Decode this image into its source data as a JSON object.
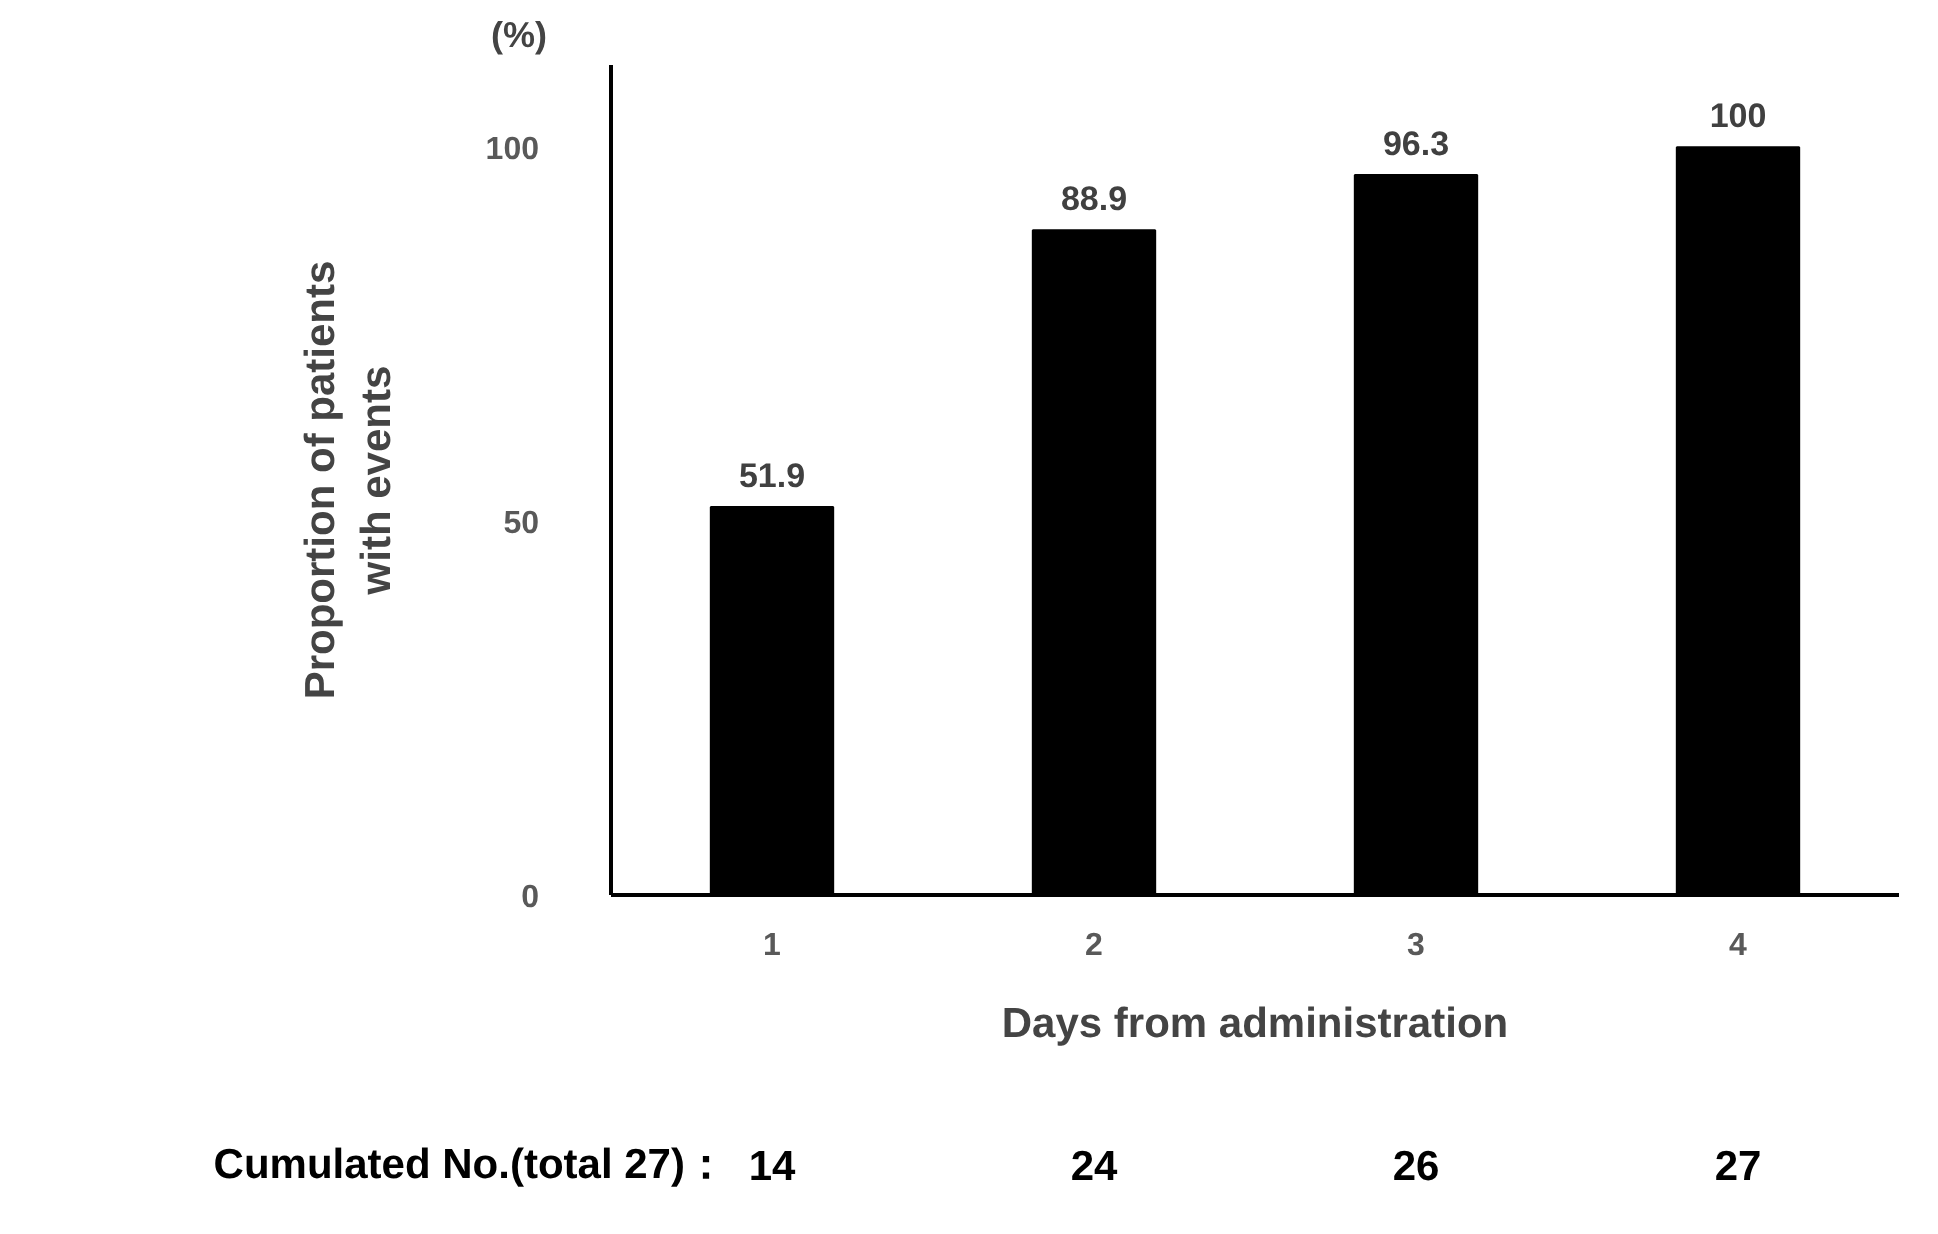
{
  "chart_data": {
    "type": "bar",
    "xlabel": "Days from administration",
    "ylabel": "Proportion of patients\nwith events",
    "categories": [
      "1",
      "2",
      "3",
      "4"
    ],
    "values": [
      51.9,
      88.9,
      96.3,
      100
    ],
    "color": "#000000",
    "ylim": [
      0,
      111
    ],
    "yticks": [
      0,
      50,
      100
    ],
    "grid": false,
    "data_labels": true,
    "annotations": [
      "(%)",
      "Cumulated No.(total 27)：",
      "14",
      "24",
      "26",
      "27"
    ]
  }
}
